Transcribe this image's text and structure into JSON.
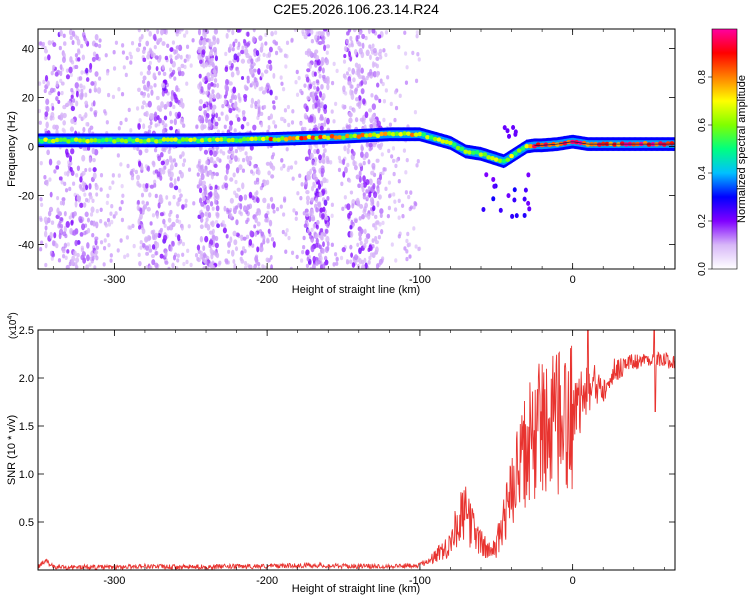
{
  "figure": {
    "title": "C2E5.2026.106.23.14.R24"
  },
  "chart_data": [
    {
      "type": "heatmap",
      "xlabel": "Height of straight line (km)",
      "ylabel": "Frequency (Hz)",
      "xlim": [
        -350,
        67
      ],
      "ylim": [
        -50,
        48
      ],
      "xticks": [
        -300,
        -200,
        -100,
        0
      ],
      "yticks": [
        -40,
        -20,
        0,
        20,
        40
      ],
      "grid": false,
      "colorbar": {
        "label": "Normalized spectral amplitude",
        "range": [
          0,
          1
        ],
        "ticks": [
          "0.0",
          "0.2",
          "0.4",
          "0.6",
          "0.8"
        ],
        "colors": [
          "#ffffff",
          "#d8b8f8",
          "#8000ff",
          "#0000ff",
          "#00c0ff",
          "#00ff80",
          "#80ff00",
          "#ffff00",
          "#ff8000",
          "#ff0000",
          "#ff00a0"
        ]
      },
      "ridge": {
        "x": [
          -350,
          -300,
          -250,
          -200,
          -150,
          -120,
          -100,
          -80,
          -70,
          -60,
          -50,
          -45,
          -40,
          -35,
          -30,
          -25,
          -20,
          -10,
          0,
          10,
          20,
          40,
          67
        ],
        "frequency": [
          2.5,
          2.5,
          2.5,
          3,
          4,
          5,
          5,
          1.5,
          -2,
          -3,
          -5,
          -6,
          -4,
          -2,
          0,
          0.5,
          0.5,
          1,
          2,
          1,
          1,
          1,
          1
        ]
      },
      "scatter_lanes_x": [
        [
          -345,
          -310
        ],
        [
          -285,
          -255
        ],
        [
          -245,
          -232
        ],
        [
          -228,
          -195
        ],
        [
          -175,
          -160
        ],
        [
          -150,
          -125
        ]
      ]
    },
    {
      "type": "line",
      "xlabel": "Height of straight line (km)",
      "ylabel": "SNR (10 * v/v)",
      "y_multiplier": "(x10",
      "y_multiplier_exp": "4",
      "y_multiplier_close": ")",
      "xlim": [
        -350,
        67
      ],
      "ylim": [
        0,
        2.5
      ],
      "xticks": [
        -300,
        -200,
        -100,
        0
      ],
      "yticks": [
        0.5,
        1.0,
        1.5,
        2.0,
        2.5
      ],
      "grid": false,
      "series": [
        {
          "color": "#e8332f",
          "x": [
            -350,
            -345,
            -340,
            -300,
            -280,
            -260,
            -200,
            -170,
            -150,
            -120,
            -100,
            -90,
            -80,
            -75,
            -70,
            -65,
            -60,
            -55,
            -50,
            -45,
            -40,
            -35,
            -30,
            -25,
            -20,
            -15,
            -10,
            -5,
            0,
            5,
            10,
            15,
            20,
            25,
            30,
            35,
            40,
            45,
            50,
            55,
            60,
            67
          ],
          "y": [
            0.03,
            0.1,
            0.03,
            0.03,
            0.04,
            0.03,
            0.04,
            0.05,
            0.04,
            0.04,
            0.05,
            0.15,
            0.3,
            0.55,
            0.6,
            0.45,
            0.3,
            0.2,
            0.25,
            0.6,
            0.8,
            1.1,
            1.3,
            1.45,
            1.6,
            1.55,
            1.55,
            1.6,
            1.7,
            1.75,
            1.85,
            1.9,
            1.95,
            2.05,
            2.1,
            2.15,
            2.17,
            2.18,
            2.2,
            2.2,
            2.18,
            2.18
          ]
        }
      ]
    }
  ]
}
